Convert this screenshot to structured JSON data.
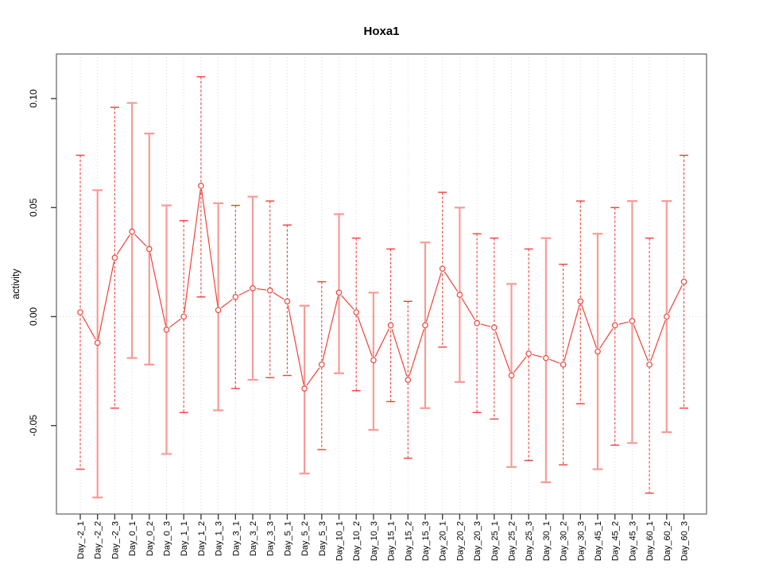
{
  "page": {
    "background": "#ffffff"
  },
  "chart_data": {
    "type": "line",
    "title": "Hoxa1",
    "ylabel": "activity",
    "xlabel": "",
    "grid": {
      "vertical_gridlines": "dotted, one per category",
      "zero_line": "dotted"
    },
    "legend": "none",
    "ylim": [
      -0.091,
      0.12
    ],
    "yticks": [
      {
        "value": 0.1,
        "label": "0.10"
      },
      {
        "value": 0.05,
        "label": "0.05"
      },
      {
        "value": 0.0,
        "label": "0.00"
      },
      {
        "value": -0.05,
        "label": "-0.05"
      }
    ],
    "categories": [
      "Day_-2_1",
      "Day_-2_2",
      "Day_-2_3",
      "Day_0_1",
      "Day_0_2",
      "Day_0_3",
      "Day_1_1",
      "Day_1_2",
      "Day_1_3",
      "Day_3_1",
      "Day_3_2",
      "Day_3_3",
      "Day_5_1",
      "Day_5_2",
      "Day_5_3",
      "Day_10_1",
      "Day_10_2",
      "Day_10_3",
      "Day_15_1",
      "Day_15_2",
      "Day_15_3",
      "Day_20_1",
      "Day_20_2",
      "Day_20_3",
      "Day_25_1",
      "Day_25_2",
      "Day_25_3",
      "Day_30_1",
      "Day_30_2",
      "Day_30_3",
      "Day_45_1",
      "Day_45_2",
      "Day_45_3",
      "Day_60_1",
      "Day_60_2",
      "Day_60_3"
    ],
    "series": [
      {
        "name": "activity",
        "point_style": "open-circle",
        "values": [
          0.002,
          -0.012,
          0.027,
          0.039,
          0.031,
          -0.006,
          0.0,
          0.06,
          0.003,
          0.009,
          0.013,
          0.012,
          0.007,
          -0.033,
          -0.022,
          0.011,
          0.002,
          -0.02,
          -0.004,
          -0.029,
          -0.004,
          0.022,
          0.01,
          -0.003,
          -0.005,
          -0.027,
          -0.017,
          -0.019,
          -0.022,
          0.007,
          -0.016,
          -0.004,
          -0.002,
          -0.022,
          0.0,
          0.016
        ],
        "error_high": [
          0.074,
          0.058,
          0.096,
          0.098,
          0.084,
          0.051,
          0.044,
          0.11,
          0.052,
          0.051,
          0.055,
          0.053,
          0.042,
          0.005,
          0.016,
          0.047,
          0.036,
          0.011,
          0.031,
          0.007,
          0.034,
          0.057,
          0.05,
          0.038,
          0.036,
          0.015,
          0.031,
          0.036,
          0.024,
          0.053,
          0.038,
          0.05,
          0.053,
          0.036,
          0.053,
          0.074
        ],
        "error_low": [
          -0.07,
          -0.083,
          -0.042,
          -0.019,
          -0.022,
          -0.063,
          -0.044,
          0.009,
          -0.043,
          -0.033,
          -0.029,
          -0.028,
          -0.027,
          -0.072,
          -0.061,
          -0.026,
          -0.034,
          -0.052,
          -0.039,
          -0.065,
          -0.042,
          -0.014,
          -0.03,
          -0.044,
          -0.047,
          -0.069,
          -0.066,
          -0.076,
          -0.068,
          -0.04,
          -0.07,
          -0.059,
          -0.058,
          -0.081,
          -0.053,
          -0.042
        ],
        "bar_styles": [
          "dashed",
          "solid",
          "dashed",
          "solid",
          "solid",
          "solid",
          "dashed",
          "dashed",
          "solid",
          "dashed",
          "solid",
          "dashed",
          "dashed",
          "solid",
          "dashed",
          "solid",
          "dashed",
          "solid",
          "dashed",
          "dashed",
          "solid",
          "dashed",
          "solid",
          "dashed",
          "dashed",
          "solid",
          "dashed",
          "solid",
          "dashed",
          "dashed",
          "solid",
          "dashed",
          "solid",
          "dashed",
          "solid",
          "dashed"
        ]
      }
    ],
    "colors": {
      "series_line": "#ee4339",
      "point_stroke": "#ee4339",
      "point_fill": "#ffffff",
      "errorbar_dashed": "#f2413b",
      "errorbar_solid": "#f79b97",
      "gridline": "#d8d8d8",
      "axis_box": "#898989",
      "tick": "#404040",
      "text": "#000000"
    }
  }
}
